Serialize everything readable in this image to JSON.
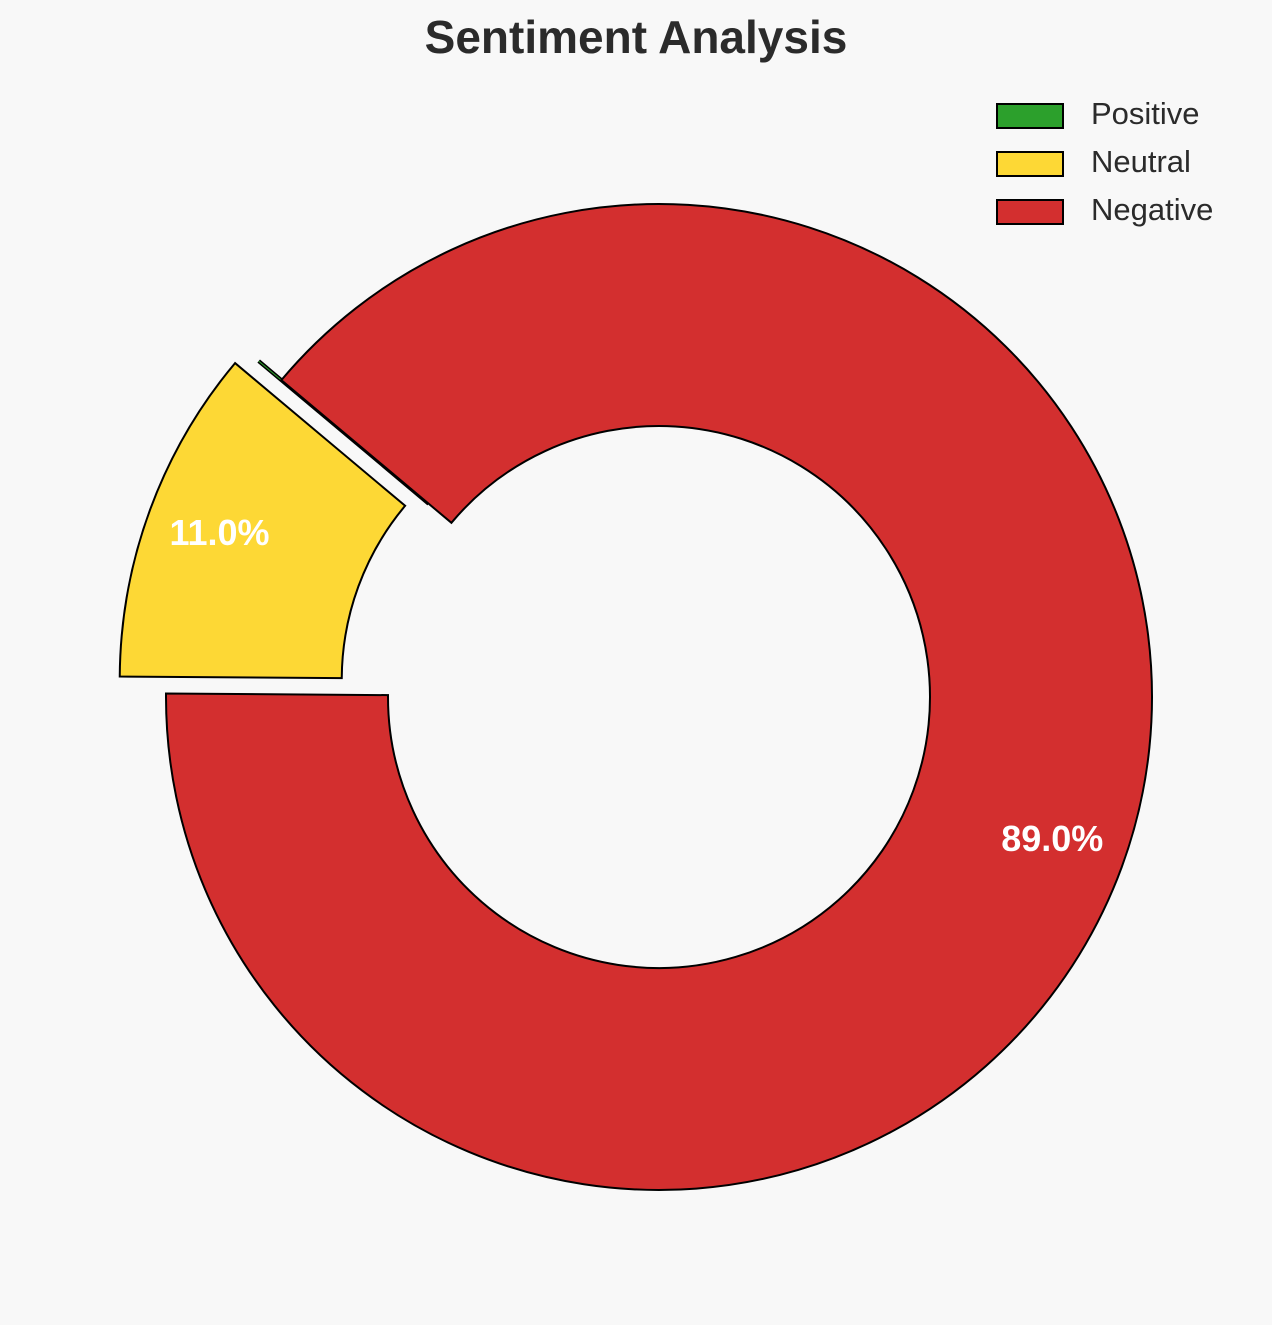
{
  "chart_data": {
    "type": "donut",
    "title": "Sentiment Analysis",
    "categories": [
      "Positive",
      "Neutral",
      "Negative"
    ],
    "values": [
      0,
      11,
      89
    ],
    "value_labels": [
      null,
      "11.0%",
      "89.0%"
    ],
    "colors": [
      "#2ca02c",
      "#fdd835",
      "#d32f2f"
    ],
    "start_angle": 140,
    "legend": "upper right"
  }
}
